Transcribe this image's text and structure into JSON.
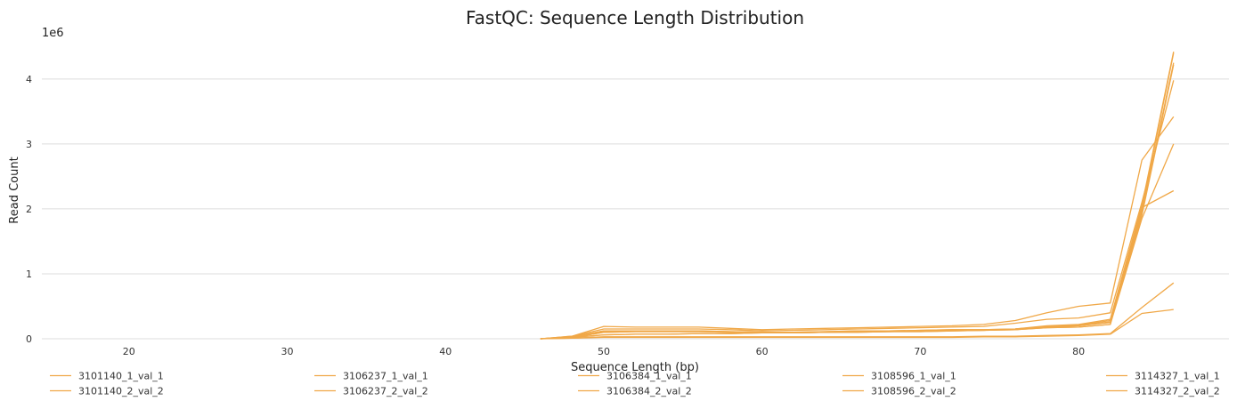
{
  "chart_data": {
    "type": "line",
    "title": "FastQC: Sequence Length Distribution",
    "xlabel": "Sequence Length (bp)",
    "ylabel": "Read Count",
    "y_multiplier": "1e6",
    "xlim": [
      14.5,
      89.5
    ],
    "ylim": [
      0,
      4.6
    ],
    "x_ticks": [
      20,
      30,
      40,
      50,
      60,
      70,
      80
    ],
    "y_ticks": [
      0,
      1,
      2,
      3,
      4
    ],
    "grid": "horizontal",
    "legend_position": "bottom",
    "line_color": "#f0a848",
    "x": [
      46,
      48,
      50,
      52,
      54,
      56,
      58,
      60,
      62,
      64,
      66,
      68,
      70,
      72,
      74,
      76,
      78,
      80,
      82,
      84,
      86
    ],
    "series": [
      {
        "name": "3101140_1_val_1",
        "values": [
          0,
          0.02,
          0.06,
          0.07,
          0.07,
          0.08,
          0.08,
          0.09,
          0.09,
          0.1,
          0.1,
          0.11,
          0.11,
          0.12,
          0.13,
          0.15,
          0.2,
          0.22,
          0.3,
          2.05,
          4.42
        ]
      },
      {
        "name": "3101140_2_val_2",
        "values": [
          0,
          0.02,
          0.06,
          0.07,
          0.07,
          0.08,
          0.08,
          0.09,
          0.09,
          0.1,
          0.1,
          0.11,
          0.11,
          0.12,
          0.13,
          0.15,
          0.19,
          0.21,
          0.28,
          2.0,
          4.4
        ]
      },
      {
        "name": "3106237_1_val_1",
        "values": [
          0,
          0.03,
          0.12,
          0.12,
          0.12,
          0.12,
          0.11,
          0.1,
          0.1,
          0.11,
          0.12,
          0.12,
          0.13,
          0.14,
          0.14,
          0.15,
          0.18,
          0.2,
          0.25,
          1.9,
          4.22
        ]
      },
      {
        "name": "3106237_2_val_2",
        "values": [
          0,
          0.03,
          0.12,
          0.12,
          0.12,
          0.12,
          0.11,
          0.1,
          0.1,
          0.11,
          0.12,
          0.12,
          0.13,
          0.14,
          0.14,
          0.15,
          0.18,
          0.2,
          0.26,
          1.95,
          4.25
        ]
      },
      {
        "name": "3106384_1_val_1",
        "values": [
          0,
          0.04,
          0.19,
          0.18,
          0.18,
          0.18,
          0.16,
          0.14,
          0.15,
          0.16,
          0.17,
          0.18,
          0.19,
          0.2,
          0.22,
          0.28,
          0.4,
          0.5,
          0.55,
          2.75,
          3.42
        ]
      },
      {
        "name": "3106384_2_val_2",
        "values": [
          0,
          0.04,
          0.15,
          0.15,
          0.15,
          0.15,
          0.14,
          0.12,
          0.13,
          0.14,
          0.15,
          0.16,
          0.17,
          0.18,
          0.19,
          0.24,
          0.3,
          0.32,
          0.4,
          2.1,
          3.98
        ]
      },
      {
        "name": "3108596_1_val_1",
        "values": [
          0,
          0.02,
          0.1,
          0.11,
          0.11,
          0.11,
          0.1,
          0.09,
          0.09,
          0.1,
          0.11,
          0.11,
          0.12,
          0.13,
          0.13,
          0.14,
          0.17,
          0.18,
          0.22,
          1.85,
          3.0
        ]
      },
      {
        "name": "3108596_2_val_2",
        "values": [
          0,
          0.02,
          0.1,
          0.11,
          0.11,
          0.11,
          0.1,
          0.09,
          0.09,
          0.1,
          0.11,
          0.11,
          0.12,
          0.13,
          0.13,
          0.14,
          0.17,
          0.18,
          0.22,
          2.02,
          2.28
        ]
      },
      {
        "name": "3114327_1_val_1",
        "values": [
          0,
          0.01,
          0.03,
          0.03,
          0.03,
          0.03,
          0.03,
          0.03,
          0.03,
          0.03,
          0.03,
          0.03,
          0.03,
          0.03,
          0.04,
          0.04,
          0.05,
          0.06,
          0.08,
          0.48,
          0.86
        ]
      },
      {
        "name": "3114327_2_val_2",
        "values": [
          0,
          0.01,
          0.02,
          0.02,
          0.02,
          0.02,
          0.02,
          0.02,
          0.02,
          0.02,
          0.02,
          0.02,
          0.02,
          0.02,
          0.03,
          0.03,
          0.04,
          0.05,
          0.07,
          0.39,
          0.45
        ]
      }
    ]
  }
}
